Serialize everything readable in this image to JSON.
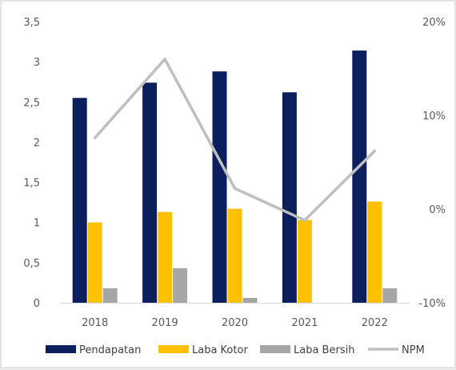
{
  "chart_data": {
    "type": "bar",
    "categories": [
      "2018",
      "2019",
      "2020",
      "2021",
      "2022"
    ],
    "series": [
      {
        "name": "Pendapatan",
        "kind": "bar",
        "axis": "left",
        "color": "#0b1f5c",
        "values": [
          2.55,
          2.74,
          2.88,
          2.62,
          3.14
        ]
      },
      {
        "name": "Laba Kotor",
        "kind": "bar",
        "axis": "left",
        "color": "#ffc000",
        "values": [
          1.0,
          1.13,
          1.17,
          1.03,
          1.26
        ]
      },
      {
        "name": "Laba Bersih",
        "kind": "bar",
        "axis": "left",
        "color": "#a5a5a5",
        "values": [
          0.18,
          0.43,
          0.06,
          0.0,
          0.18
        ]
      },
      {
        "name": "NPM",
        "kind": "line",
        "axis": "right",
        "color": "#bfbfbf",
        "values": [
          0.076,
          0.16,
          0.022,
          -0.012,
          0.062
        ]
      }
    ],
    "yleft": {
      "min": 0,
      "max": 3.5,
      "ticks": [
        "0",
        "0,5",
        "1",
        "1,5",
        "2",
        "2,5",
        "3",
        "3,5"
      ]
    },
    "yright": {
      "min": -0.1,
      "max": 0.2,
      "ticks": [
        "-10%",
        "0%",
        "10%",
        "20%"
      ]
    },
    "legend": "bottom",
    "grid": false
  }
}
